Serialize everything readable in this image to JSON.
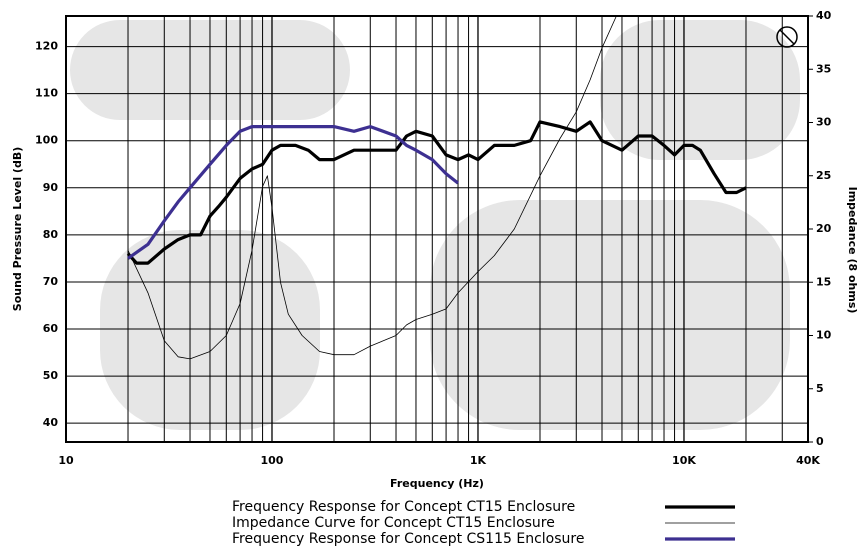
{
  "chart_data": {
    "type": "line",
    "xlabel": "Frequency (Hz)",
    "ylabel": "Sound Pressure Level (dB)",
    "y2label": "Impedance (8 ohms)",
    "xscale": "log",
    "xlim": [
      10,
      40000
    ],
    "xticks": [
      10,
      100,
      {
        "value": 1000,
        "label": "1K"
      },
      {
        "value": 10000,
        "label": "10K"
      },
      {
        "value": 40000,
        "label": "40K"
      }
    ],
    "xgrid": [
      20,
      30,
      40,
      50,
      60,
      70,
      80,
      90,
      200,
      300,
      400,
      500,
      600,
      700,
      800,
      900,
      2000,
      3000,
      4000,
      5000,
      6000,
      7000,
      8000,
      9000,
      20000,
      30000
    ],
    "ylim": [
      36,
      126.5
    ],
    "yticks": [
      40,
      50,
      60,
      70,
      80,
      90,
      100,
      110,
      120
    ],
    "y2lim": [
      0,
      40
    ],
    "y2ticks": [
      0,
      5,
      10,
      15,
      20,
      25,
      30,
      35,
      40
    ],
    "grid": true,
    "series": [
      {
        "name": "Frequency  Response for Concept CT15 Enclosure",
        "color": "#000000",
        "width": 3.2,
        "x": [
          20,
          22,
          25,
          30,
          35,
          40,
          45,
          50,
          55,
          60,
          70,
          80,
          90,
          100,
          110,
          130,
          150,
          170,
          200,
          250,
          300,
          350,
          400,
          450,
          500,
          600,
          700,
          800,
          900,
          1000,
          1200,
          1500,
          1800,
          2000,
          2500,
          3000,
          3500,
          4000,
          5000,
          6000,
          7000,
          8000,
          9000,
          10000,
          11000,
          12000,
          14000,
          16000,
          18000,
          20000
        ],
        "values": [
          76,
          74,
          74,
          77,
          79,
          80,
          80,
          84,
          86,
          88,
          92,
          94,
          95,
          98,
          99,
          99,
          98,
          96,
          96,
          98,
          98,
          98,
          98,
          101,
          102,
          101,
          97,
          96,
          97,
          96,
          99,
          99,
          100,
          104,
          103,
          102,
          104,
          100,
          98,
          101,
          101,
          99,
          97,
          99,
          99,
          98,
          93,
          89,
          89,
          90
        ]
      },
      {
        "name": "Impedance Curve for Concept CT15 Enclosure",
        "color": "#000000",
        "width": 0.8,
        "axis": "y2",
        "x": [
          20,
          25,
          30,
          35,
          40,
          50,
          60,
          70,
          80,
          90,
          95,
          100,
          110,
          120,
          140,
          170,
          200,
          250,
          300,
          400,
          450,
          500,
          600,
          700,
          800,
          1000,
          1200,
          1500,
          2000,
          2500,
          3000,
          3500,
          4000,
          4700
        ],
        "values": [
          18,
          14,
          9.5,
          8,
          7.8,
          8.5,
          10,
          13,
          18,
          24,
          25,
          22,
          15,
          12,
          10,
          8.5,
          8.2,
          8.2,
          9,
          10,
          11,
          11.5,
          12,
          12.5,
          14,
          16,
          17.5,
          20,
          25,
          28.5,
          31,
          34,
          37,
          40
        ]
      },
      {
        "name": "Frequency  Response for Concept CS115 Enclosure",
        "color": "#3d3091",
        "width": 3.2,
        "x": [
          20,
          25,
          30,
          35,
          40,
          50,
          60,
          70,
          80,
          100,
          120,
          150,
          200,
          250,
          300,
          400,
          450,
          500,
          600,
          700,
          800
        ],
        "values": [
          75,
          78,
          83,
          87,
          90,
          95,
          99,
          102,
          103,
          103,
          103,
          103,
          103,
          102,
          103,
          101,
          99,
          98,
          96,
          93,
          91
        ]
      }
    ]
  }
}
